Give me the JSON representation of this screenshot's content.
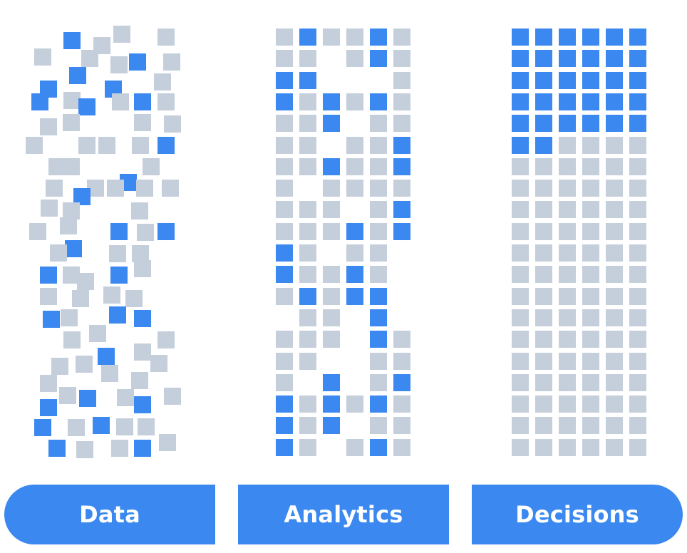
{
  "colors": {
    "accent": "#3b88f0",
    "inactive": "#c5cedb",
    "background": "#ffffff"
  },
  "panels": [
    {
      "label": "Data",
      "blue_cells": 24,
      "gray_cells": 68
    },
    {
      "label": "Analytics",
      "blue_cells": 31,
      "gray_cells": 77
    },
    {
      "label": "Decisions",
      "blue_cells": 32,
      "gray_cells": 88
    }
  ]
}
